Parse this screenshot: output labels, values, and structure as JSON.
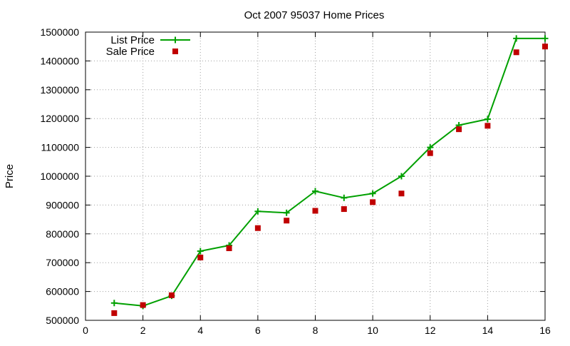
{
  "chart_data": {
    "type": "line",
    "title": "Oct 2007 95037 Home Prices",
    "xlabel": "",
    "ylabel": "Price",
    "xlim": [
      0,
      16
    ],
    "ylim": [
      500000,
      1500000
    ],
    "x_ticks": [
      0,
      2,
      4,
      6,
      8,
      10,
      12,
      14,
      16
    ],
    "y_ticks": [
      500000,
      600000,
      700000,
      800000,
      900000,
      1000000,
      1100000,
      1200000,
      1300000,
      1400000,
      1500000
    ],
    "grid": true,
    "legend_position": "top-left",
    "series": [
      {
        "name": "List Price",
        "style": "line-with-plus-markers",
        "color": "#00a000",
        "x": [
          1,
          2,
          3,
          4,
          5,
          6,
          7,
          8,
          9,
          10,
          11,
          12,
          13,
          14,
          15,
          16
        ],
        "values": [
          560000,
          550000,
          585000,
          740000,
          760000,
          878000,
          873000,
          948000,
          925000,
          940000,
          1000000,
          1100000,
          1177000,
          1198000,
          1478000,
          1478000
        ]
      },
      {
        "name": "Sale Price",
        "style": "square-markers",
        "color": "#c00000",
        "x": [
          1,
          2,
          3,
          4,
          5,
          6,
          7,
          8,
          9,
          10,
          11,
          12,
          13,
          14,
          15,
          16
        ],
        "values": [
          525000,
          553000,
          587000,
          718000,
          750000,
          820000,
          846000,
          880000,
          886000,
          910000,
          940000,
          1080000,
          1163000,
          1175000,
          1430000,
          1450000
        ]
      }
    ]
  }
}
